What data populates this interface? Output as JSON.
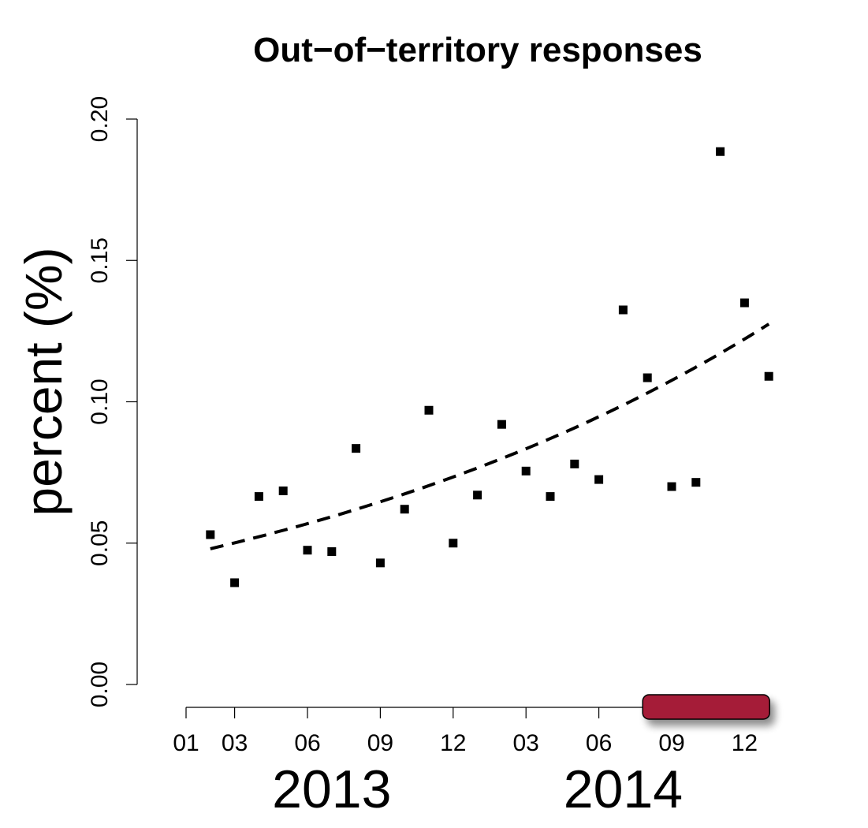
{
  "chart_data": {
    "type": "scatter",
    "title": "Out−of−territory responses",
    "ylabel": "percent (%)",
    "xlabel": "",
    "ylim": [
      0,
      0.2
    ],
    "y_ticks": [
      "0.00",
      "0.05",
      "0.10",
      "0.15",
      "0.20"
    ],
    "x_tick_labels": [
      "01",
      "03",
      "06",
      "09",
      "12",
      "03",
      "06",
      "09",
      "12"
    ],
    "x_tick_months": [
      1,
      3,
      6,
      9,
      12,
      15,
      18,
      21,
      24
    ],
    "year_labels": [
      {
        "label": "2013",
        "month": 7
      },
      {
        "label": "2014",
        "month": 19
      }
    ],
    "grid": false,
    "series": [
      {
        "marker": "square",
        "color": "#000000",
        "x": [
          2,
          3,
          4,
          5,
          6,
          7,
          8,
          9,
          10,
          11,
          12,
          13,
          14,
          15,
          16,
          17,
          18,
          19,
          20,
          21,
          22,
          23,
          24,
          25
        ],
        "y": [
          0.053,
          0.036,
          0.0665,
          0.0685,
          0.0475,
          0.047,
          0.0835,
          0.043,
          0.062,
          0.097,
          0.05,
          0.067,
          0.092,
          0.0755,
          0.0665,
          0.078,
          0.0725,
          0.1325,
          0.1085,
          0.07,
          0.0715,
          0.1885,
          0.135,
          0.109
        ]
      },
      {
        "type": "line",
        "style": "dashed",
        "color": "#000000",
        "fit": "exponential",
        "x_range": [
          2,
          25
        ],
        "y_start": 0.048,
        "y_end": 0.1275
      }
    ],
    "highlight_period": {
      "color": "#a51d37",
      "start_month": 20,
      "end_month": 25
    }
  }
}
